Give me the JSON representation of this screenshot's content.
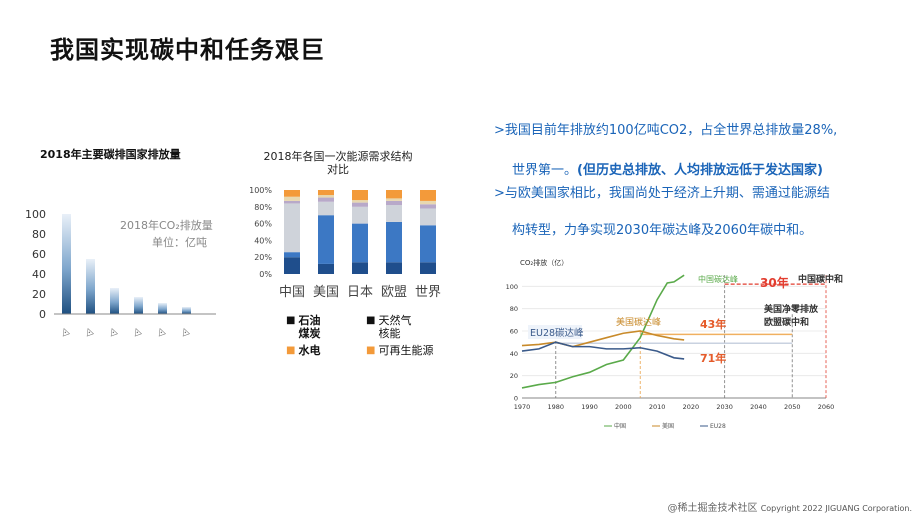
{
  "slide": {
    "title": "我国实现碳中和任务艰巨"
  },
  "chart1": {
    "title": "2018年主要碳排国家排放量",
    "series_label": "2018年CO₂排放量",
    "unit_label": "单位：亿吨",
    "chart_data": {
      "type": "bar",
      "categories": [
        "国家1",
        "国家2",
        "国家3",
        "国家4",
        "国家5",
        "国家6"
      ],
      "values": [
        100,
        55,
        26,
        17,
        11,
        7
      ],
      "ylim": [
        0,
        100
      ],
      "yticks": [
        0,
        20,
        40,
        60,
        80,
        100
      ]
    }
  },
  "chart2": {
    "title": "2018年各国一次能源需求结构 对比",
    "chart_data": {
      "type": "bar",
      "stacked": true,
      "categories": [
        "中国",
        "美国",
        "日本",
        "欧盟",
        "世界"
      ],
      "yticks": [
        "0%",
        "20%",
        "40%",
        "60%",
        "80%",
        "100%"
      ],
      "series": [
        {
          "name": "煤炭",
          "color": "#1f4e8c",
          "values": [
            20,
            12,
            14,
            14,
            14
          ]
        },
        {
          "name": "石油",
          "color": "#3c78c4",
          "values": [
            6,
            58,
            46,
            48,
            44
          ]
        },
        {
          "name": "天然气",
          "color": "#cfd3da",
          "values": [
            58,
            16,
            20,
            20,
            20
          ]
        },
        {
          "name": "核能",
          "color": "#b8a9c9",
          "values": [
            3,
            5,
            5,
            5,
            5
          ]
        },
        {
          "name": "水电",
          "color": "#e8d8b0",
          "values": [
            5,
            3,
            3,
            3,
            4
          ]
        },
        {
          "name": "可再生能源",
          "color": "#f39a3a",
          "values": [
            8,
            6,
            12,
            10,
            13
          ]
        }
      ]
    },
    "legend": [
      {
        "label": "石油\n煤炭",
        "bold": true
      },
      {
        "label": "天然气\n核能",
        "bold": false
      },
      {
        "label": "水电",
        "bold": true,
        "color": "#f39a3a"
      },
      {
        "label": "可再生能源",
        "bold": false,
        "color": "#f39a3a"
      }
    ]
  },
  "right_text": {
    "line1": ">我国目前年排放约100亿吨CO2，占全世界总排放量28%,",
    "line2a": "世界第一。",
    "line2b": "(但历史总排放、人均排放远低于发达国家)",
    "line3": ">与欧美国家相比，我国尚处于经济上升期、需通过能源结",
    "line4": "构转型，力争实现2030年碳达峰及2060年碳中和。"
  },
  "chart3": {
    "ylabel": "CO₂排放（亿）",
    "chart_data": {
      "type": "line",
      "xlim": [
        1970,
        2060
      ],
      "ylim": [
        0,
        120
      ],
      "xticks": [
        1970,
        1980,
        1990,
        2000,
        2010,
        2020,
        2030,
        2040,
        2050,
        2060
      ],
      "yticks": [
        0,
        20,
        40,
        60,
        80,
        100
      ],
      "series": [
        {
          "name": "中国",
          "color": "#5aaa4a",
          "x": [
            1970,
            1975,
            1980,
            1985,
            1990,
            1995,
            2000,
            2005,
            2010,
            2013,
            2015,
            2018
          ],
          "y": [
            9,
            12,
            14,
            19,
            23,
            30,
            34,
            54,
            88,
            103,
            104,
            110
          ]
        },
        {
          "name": "美国",
          "color": "#c88a2a",
          "x": [
            1970,
            1975,
            1980,
            1985,
            1990,
            1995,
            2000,
            2005,
            2010,
            2015,
            2018
          ],
          "y": [
            47,
            48,
            50,
            46,
            50,
            54,
            58,
            60,
            56,
            53,
            52
          ]
        },
        {
          "name": "EU28",
          "color": "#3a5a8a",
          "x": [
            1970,
            1975,
            1980,
            1985,
            1990,
            1995,
            2000,
            2005,
            2010,
            2015,
            2018
          ],
          "y": [
            42,
            44,
            50,
            46,
            46,
            44,
            44,
            45,
            42,
            36,
            35
          ]
        }
      ]
    },
    "labels": {
      "china_peak": "中国碳达峰",
      "us_peak": "美国碳达峰",
      "eu_peak": "EU28碳达峰",
      "china_neutral": "中国碳中和",
      "gap_30": "30年",
      "gap_43": "43年",
      "gap_71": "71年",
      "us_eu_neutral_1": "美国净零排放",
      "us_eu_neutral_2": "欧盟碳中和"
    },
    "legend": [
      "中国",
      "美国",
      "EU28"
    ]
  },
  "footer": {
    "brand": "@稀土掘金技术社区",
    "copyright": "Copyright 2022 JIGUANG Corporation."
  }
}
